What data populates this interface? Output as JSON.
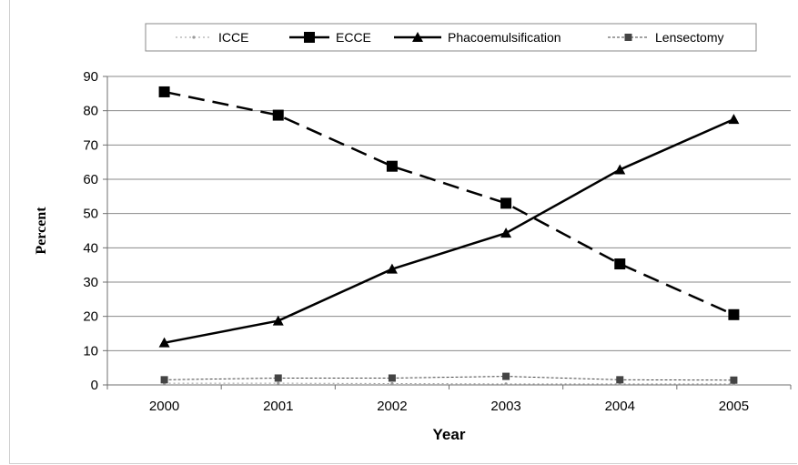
{
  "chart_data": {
    "type": "line",
    "x": [
      "2000",
      "2001",
      "2002",
      "2003",
      "2004",
      "2005"
    ],
    "xlabel": "Year",
    "ylabel": "Percent",
    "ylim": [
      0,
      90
    ],
    "yticks": [
      0,
      10,
      20,
      30,
      40,
      50,
      60,
      70,
      80,
      90
    ],
    "grid": true,
    "legend_position": "top",
    "series": [
      {
        "name": "ICCE",
        "values": [
          0.5,
          0.5,
          0.4,
          0.3,
          0.3,
          0.3
        ],
        "color": "#999999",
        "line": "dotted-light",
        "marker": "dot"
      },
      {
        "name": "ECCE",
        "values": [
          85.5,
          78.7,
          63.8,
          53.0,
          35.3,
          20.5
        ],
        "color": "#000000",
        "line": "long-dash",
        "marker": "square"
      },
      {
        "name": "Phacoemulsification",
        "values": [
          12.3,
          18.7,
          33.8,
          44.3,
          62.8,
          77.5
        ],
        "color": "#000000",
        "line": "solid",
        "marker": "triangle"
      },
      {
        "name": "Lensectomy",
        "values": [
          1.5,
          2.0,
          2.0,
          2.5,
          1.5,
          1.4
        ],
        "color": "#444444",
        "line": "short-dash",
        "marker": "small-square"
      }
    ]
  }
}
